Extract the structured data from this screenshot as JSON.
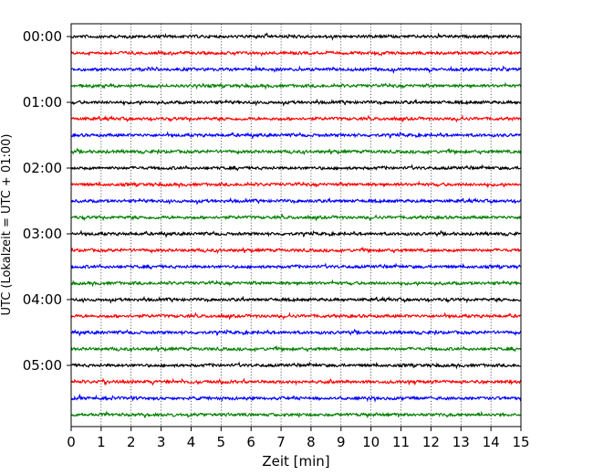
{
  "chart_data": {
    "type": "line",
    "title": "",
    "xlabel": "Zeit  [min]",
    "ylabel": "UTC (Lokalzeit = UTC + 01:00)",
    "xlim": [
      0,
      15
    ],
    "x_ticks": [
      0,
      1,
      2,
      3,
      4,
      5,
      6,
      7,
      8,
      9,
      10,
      11,
      12,
      13,
      14,
      15
    ],
    "y_ticks": [
      "00:00",
      "01:00",
      "02:00",
      "03:00",
      "04:00",
      "05:00"
    ],
    "grid": "vertical dotted",
    "trace_interval_min": 15,
    "trace_colors": [
      "#000000",
      "#ff0000",
      "#0000ff",
      "#008000"
    ],
    "traces_start": [
      "00:00",
      "00:15",
      "00:30",
      "00:45",
      "01:00",
      "01:15",
      "01:30",
      "01:45",
      "02:00",
      "02:15",
      "02:30",
      "02:45",
      "03:00",
      "03:15",
      "03:30",
      "03:45",
      "04:00",
      "04:15",
      "04:30",
      "04:45",
      "05:00",
      "05:15",
      "05:30",
      "05:45"
    ]
  }
}
